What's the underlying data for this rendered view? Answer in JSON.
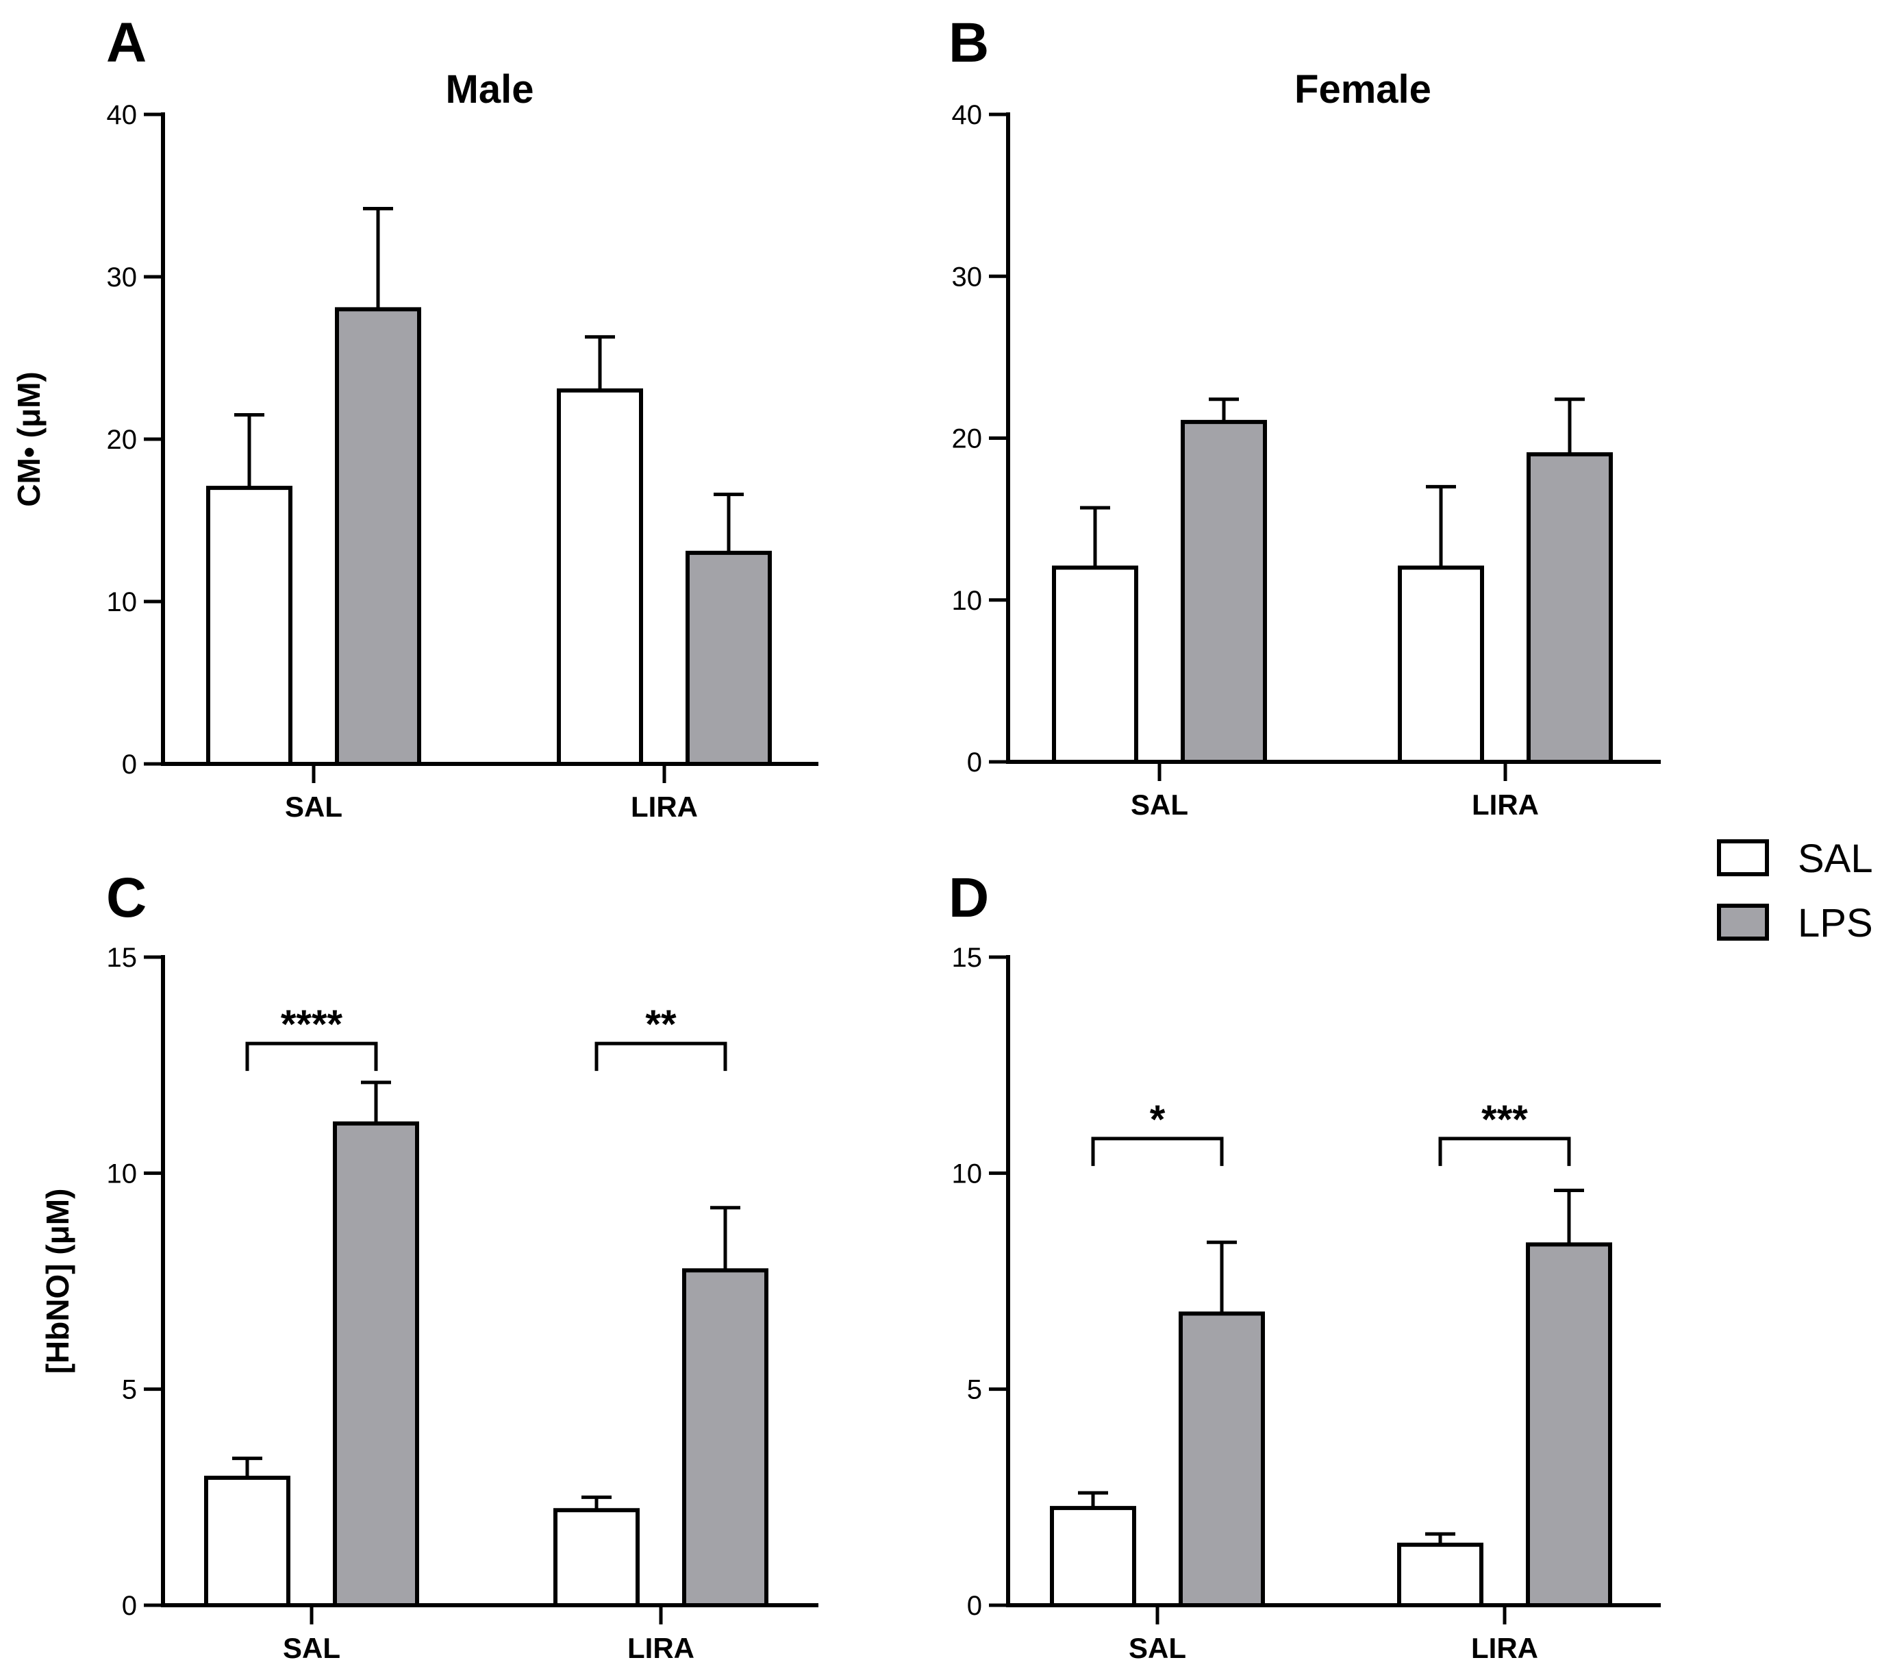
{
  "legend": {
    "items": [
      {
        "label": "SAL",
        "color": "#ffffff"
      },
      {
        "label": "LPS",
        "color": "#a3a3a8"
      }
    ]
  },
  "chart_data": [
    {
      "panel": "A",
      "type": "bar",
      "title": "Male",
      "ylabel": "CM• (μM)",
      "categories": [
        "SAL",
        "LIRA"
      ],
      "ylim": [
        0,
        40
      ],
      "yticks": [
        0,
        10,
        20,
        30,
        40
      ],
      "series": [
        {
          "name": "SAL",
          "values": [
            17,
            23
          ],
          "errors": [
            4.5,
            3.3
          ]
        },
        {
          "name": "LPS",
          "values": [
            28,
            13
          ],
          "errors": [
            6.2,
            3.6
          ]
        }
      ],
      "significance": []
    },
    {
      "panel": "B",
      "type": "bar",
      "title": "Female",
      "ylabel": "",
      "categories": [
        "SAL",
        "LIRA"
      ],
      "ylim": [
        0,
        40
      ],
      "yticks": [
        0,
        10,
        20,
        30,
        40
      ],
      "series": [
        {
          "name": "SAL",
          "values": [
            12,
            12
          ],
          "errors": [
            3.7,
            5
          ]
        },
        {
          "name": "LPS",
          "values": [
            21,
            19
          ],
          "errors": [
            1.4,
            3.4
          ]
        }
      ],
      "significance": []
    },
    {
      "panel": "C",
      "type": "bar",
      "title": "",
      "ylabel": "[HbNO] (μM)",
      "categories": [
        "SAL",
        "LIRA"
      ],
      "ylim": [
        0,
        15
      ],
      "yticks": [
        0,
        5,
        10,
        15
      ],
      "series": [
        {
          "name": "SAL",
          "values": [
            2.95,
            2.2
          ],
          "errors": [
            0.45,
            0.3
          ]
        },
        {
          "name": "LPS",
          "values": [
            11.15,
            7.75
          ],
          "errors": [
            0.95,
            1.45
          ]
        }
      ],
      "significance": [
        {
          "category": 0,
          "label": "****",
          "y": 13
        },
        {
          "category": 1,
          "label": "**",
          "y": 13
        }
      ]
    },
    {
      "panel": "D",
      "type": "bar",
      "title": "",
      "ylabel": "",
      "categories": [
        "SAL",
        "LIRA"
      ],
      "ylim": [
        0,
        15
      ],
      "yticks": [
        0,
        5,
        10,
        15
      ],
      "series": [
        {
          "name": "SAL",
          "values": [
            2.25,
            1.4
          ],
          "errors": [
            0.35,
            0.25
          ]
        },
        {
          "name": "LPS",
          "values": [
            6.75,
            8.35
          ],
          "errors": [
            1.65,
            1.25
          ]
        }
      ],
      "significance": [
        {
          "category": 0,
          "label": "*",
          "y": 10.8
        },
        {
          "category": 1,
          "label": "***",
          "y": 10.8
        }
      ]
    }
  ]
}
